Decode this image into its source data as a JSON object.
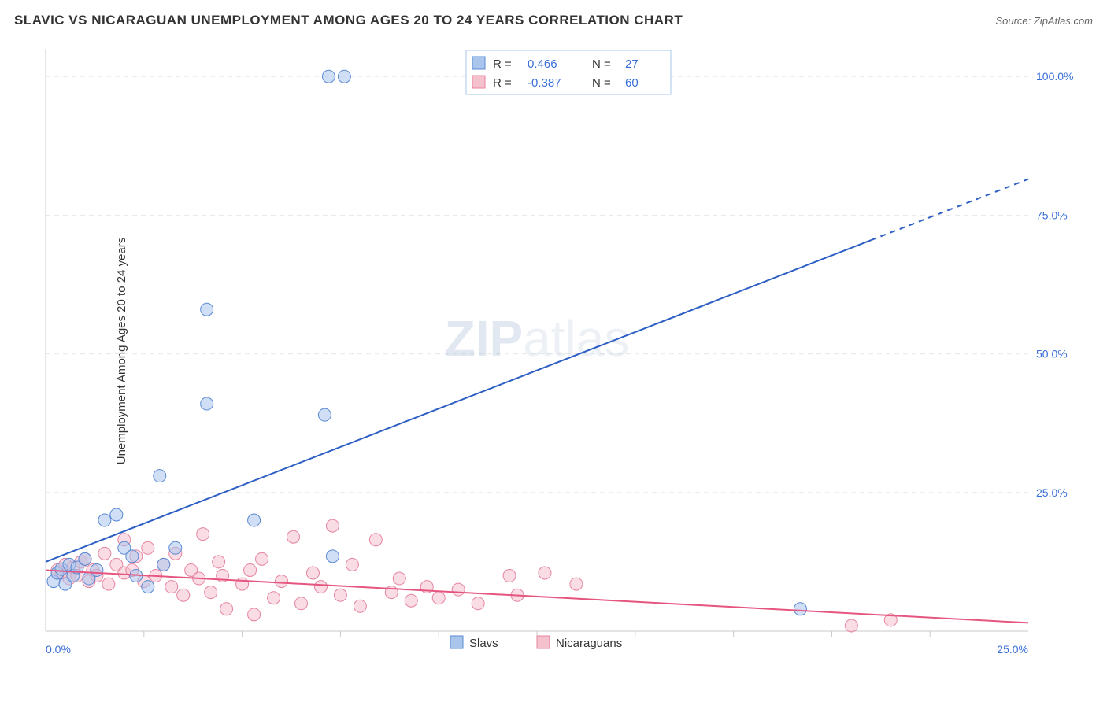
{
  "title": "SLAVIC VS NICARAGUAN UNEMPLOYMENT AMONG AGES 20 TO 24 YEARS CORRELATION CHART",
  "source": "Source: ZipAtlas.com",
  "ylabel": "Unemployment Among Ages 20 to 24 years",
  "watermark_a": "ZIP",
  "watermark_b": "atlas",
  "series": {
    "slavs": {
      "label": "Slavs",
      "color_fill": "#a9c5ec",
      "color_stroke": "#5a8ad4",
      "line_color": "#2d5fc4",
      "R": "0.466",
      "N": "27",
      "trend": {
        "x1": 0,
        "y1": 12.5,
        "x2_solid": 21.0,
        "y2_solid": 70.5,
        "x2": 25.0,
        "y2": 81.5
      },
      "points": [
        [
          0.2,
          9.0
        ],
        [
          0.3,
          10.5
        ],
        [
          0.4,
          11.2
        ],
        [
          0.5,
          8.5
        ],
        [
          0.6,
          12.0
        ],
        [
          0.7,
          10.0
        ],
        [
          0.8,
          11.5
        ],
        [
          1.0,
          13.0
        ],
        [
          1.1,
          9.5
        ],
        [
          1.3,
          11.0
        ],
        [
          1.5,
          20.0
        ],
        [
          1.8,
          21.0
        ],
        [
          2.0,
          15.0
        ],
        [
          2.2,
          13.5
        ],
        [
          2.3,
          10.0
        ],
        [
          2.6,
          8.0
        ],
        [
          2.9,
          28.0
        ],
        [
          3.0,
          12.0
        ],
        [
          3.3,
          15.0
        ],
        [
          4.1,
          58.0
        ],
        [
          4.1,
          41.0
        ],
        [
          5.3,
          20.0
        ],
        [
          7.1,
          39.0
        ],
        [
          7.3,
          13.5
        ],
        [
          7.2,
          100.0
        ],
        [
          7.6,
          100.0
        ],
        [
          19.2,
          4.0
        ]
      ]
    },
    "nicaraguans": {
      "label": "Nicaraguans",
      "color_fill": "#f5c1cd",
      "color_stroke": "#e584a0",
      "line_color": "#e6557f",
      "R": "-0.387",
      "N": "60",
      "trend": {
        "x1": 0,
        "y1": 11.0,
        "x2": 25.0,
        "y2": 1.5
      },
      "points": [
        [
          0.3,
          11.0
        ],
        [
          0.4,
          10.5
        ],
        [
          0.5,
          12.0
        ],
        [
          0.6,
          9.5
        ],
        [
          0.7,
          11.5
        ],
        [
          0.8,
          10.0
        ],
        [
          0.9,
          12.5
        ],
        [
          1.0,
          13.0
        ],
        [
          1.1,
          9.0
        ],
        [
          1.2,
          11.0
        ],
        [
          1.3,
          10.0
        ],
        [
          1.5,
          14.0
        ],
        [
          1.6,
          8.5
        ],
        [
          1.8,
          12.0
        ],
        [
          2.0,
          10.5
        ],
        [
          2.0,
          16.5
        ],
        [
          2.2,
          11.0
        ],
        [
          2.3,
          13.5
        ],
        [
          2.5,
          9.0
        ],
        [
          2.6,
          15.0
        ],
        [
          2.8,
          10.0
        ],
        [
          3.0,
          12.0
        ],
        [
          3.2,
          8.0
        ],
        [
          3.3,
          14.0
        ],
        [
          3.5,
          6.5
        ],
        [
          3.7,
          11.0
        ],
        [
          3.9,
          9.5
        ],
        [
          4.0,
          17.5
        ],
        [
          4.2,
          7.0
        ],
        [
          4.4,
          12.5
        ],
        [
          4.6,
          4.0
        ],
        [
          4.5,
          10.0
        ],
        [
          5.0,
          8.5
        ],
        [
          5.2,
          11.0
        ],
        [
          5.3,
          3.0
        ],
        [
          5.5,
          13.0
        ],
        [
          5.8,
          6.0
        ],
        [
          6.0,
          9.0
        ],
        [
          6.3,
          17.0
        ],
        [
          6.5,
          5.0
        ],
        [
          6.8,
          10.5
        ],
        [
          7.0,
          8.0
        ],
        [
          7.3,
          19.0
        ],
        [
          7.5,
          6.5
        ],
        [
          7.8,
          12.0
        ],
        [
          8.0,
          4.5
        ],
        [
          8.4,
          16.5
        ],
        [
          8.8,
          7.0
        ],
        [
          9.0,
          9.5
        ],
        [
          9.3,
          5.5
        ],
        [
          9.7,
          8.0
        ],
        [
          10.0,
          6.0
        ],
        [
          10.5,
          7.5
        ],
        [
          11.0,
          5.0
        ],
        [
          11.8,
          10.0
        ],
        [
          12.0,
          6.5
        ],
        [
          12.7,
          10.5
        ],
        [
          13.5,
          8.5
        ],
        [
          20.5,
          1.0
        ],
        [
          21.5,
          2.0
        ]
      ]
    }
  },
  "axes": {
    "xlim": [
      0,
      25
    ],
    "ylim": [
      0,
      105
    ],
    "x_ticks_major": [
      0,
      25
    ],
    "x_ticks_minor": [
      2.5,
      5.0,
      7.5,
      10.0,
      12.5,
      15.0,
      17.5,
      20.0,
      22.5
    ],
    "x_tick_labels": {
      "0": "0.0%",
      "25": "25.0%"
    },
    "y_ticks": [
      25,
      50,
      75,
      100
    ],
    "y_tick_labels": {
      "25": "25.0%",
      "50": "50.0%",
      "75": "75.0%",
      "100": "100.0%"
    },
    "grid_color": "#e8e8e8",
    "axis_color": "#c9c9c9",
    "dash": "6,5"
  },
  "r_box": {
    "border_color": "#a9c5ec",
    "bg_color": "#ffffff",
    "label_R": "R  =",
    "label_N": "N  ="
  },
  "marker_radius": 8,
  "line_width": 2,
  "legend_square": 16
}
